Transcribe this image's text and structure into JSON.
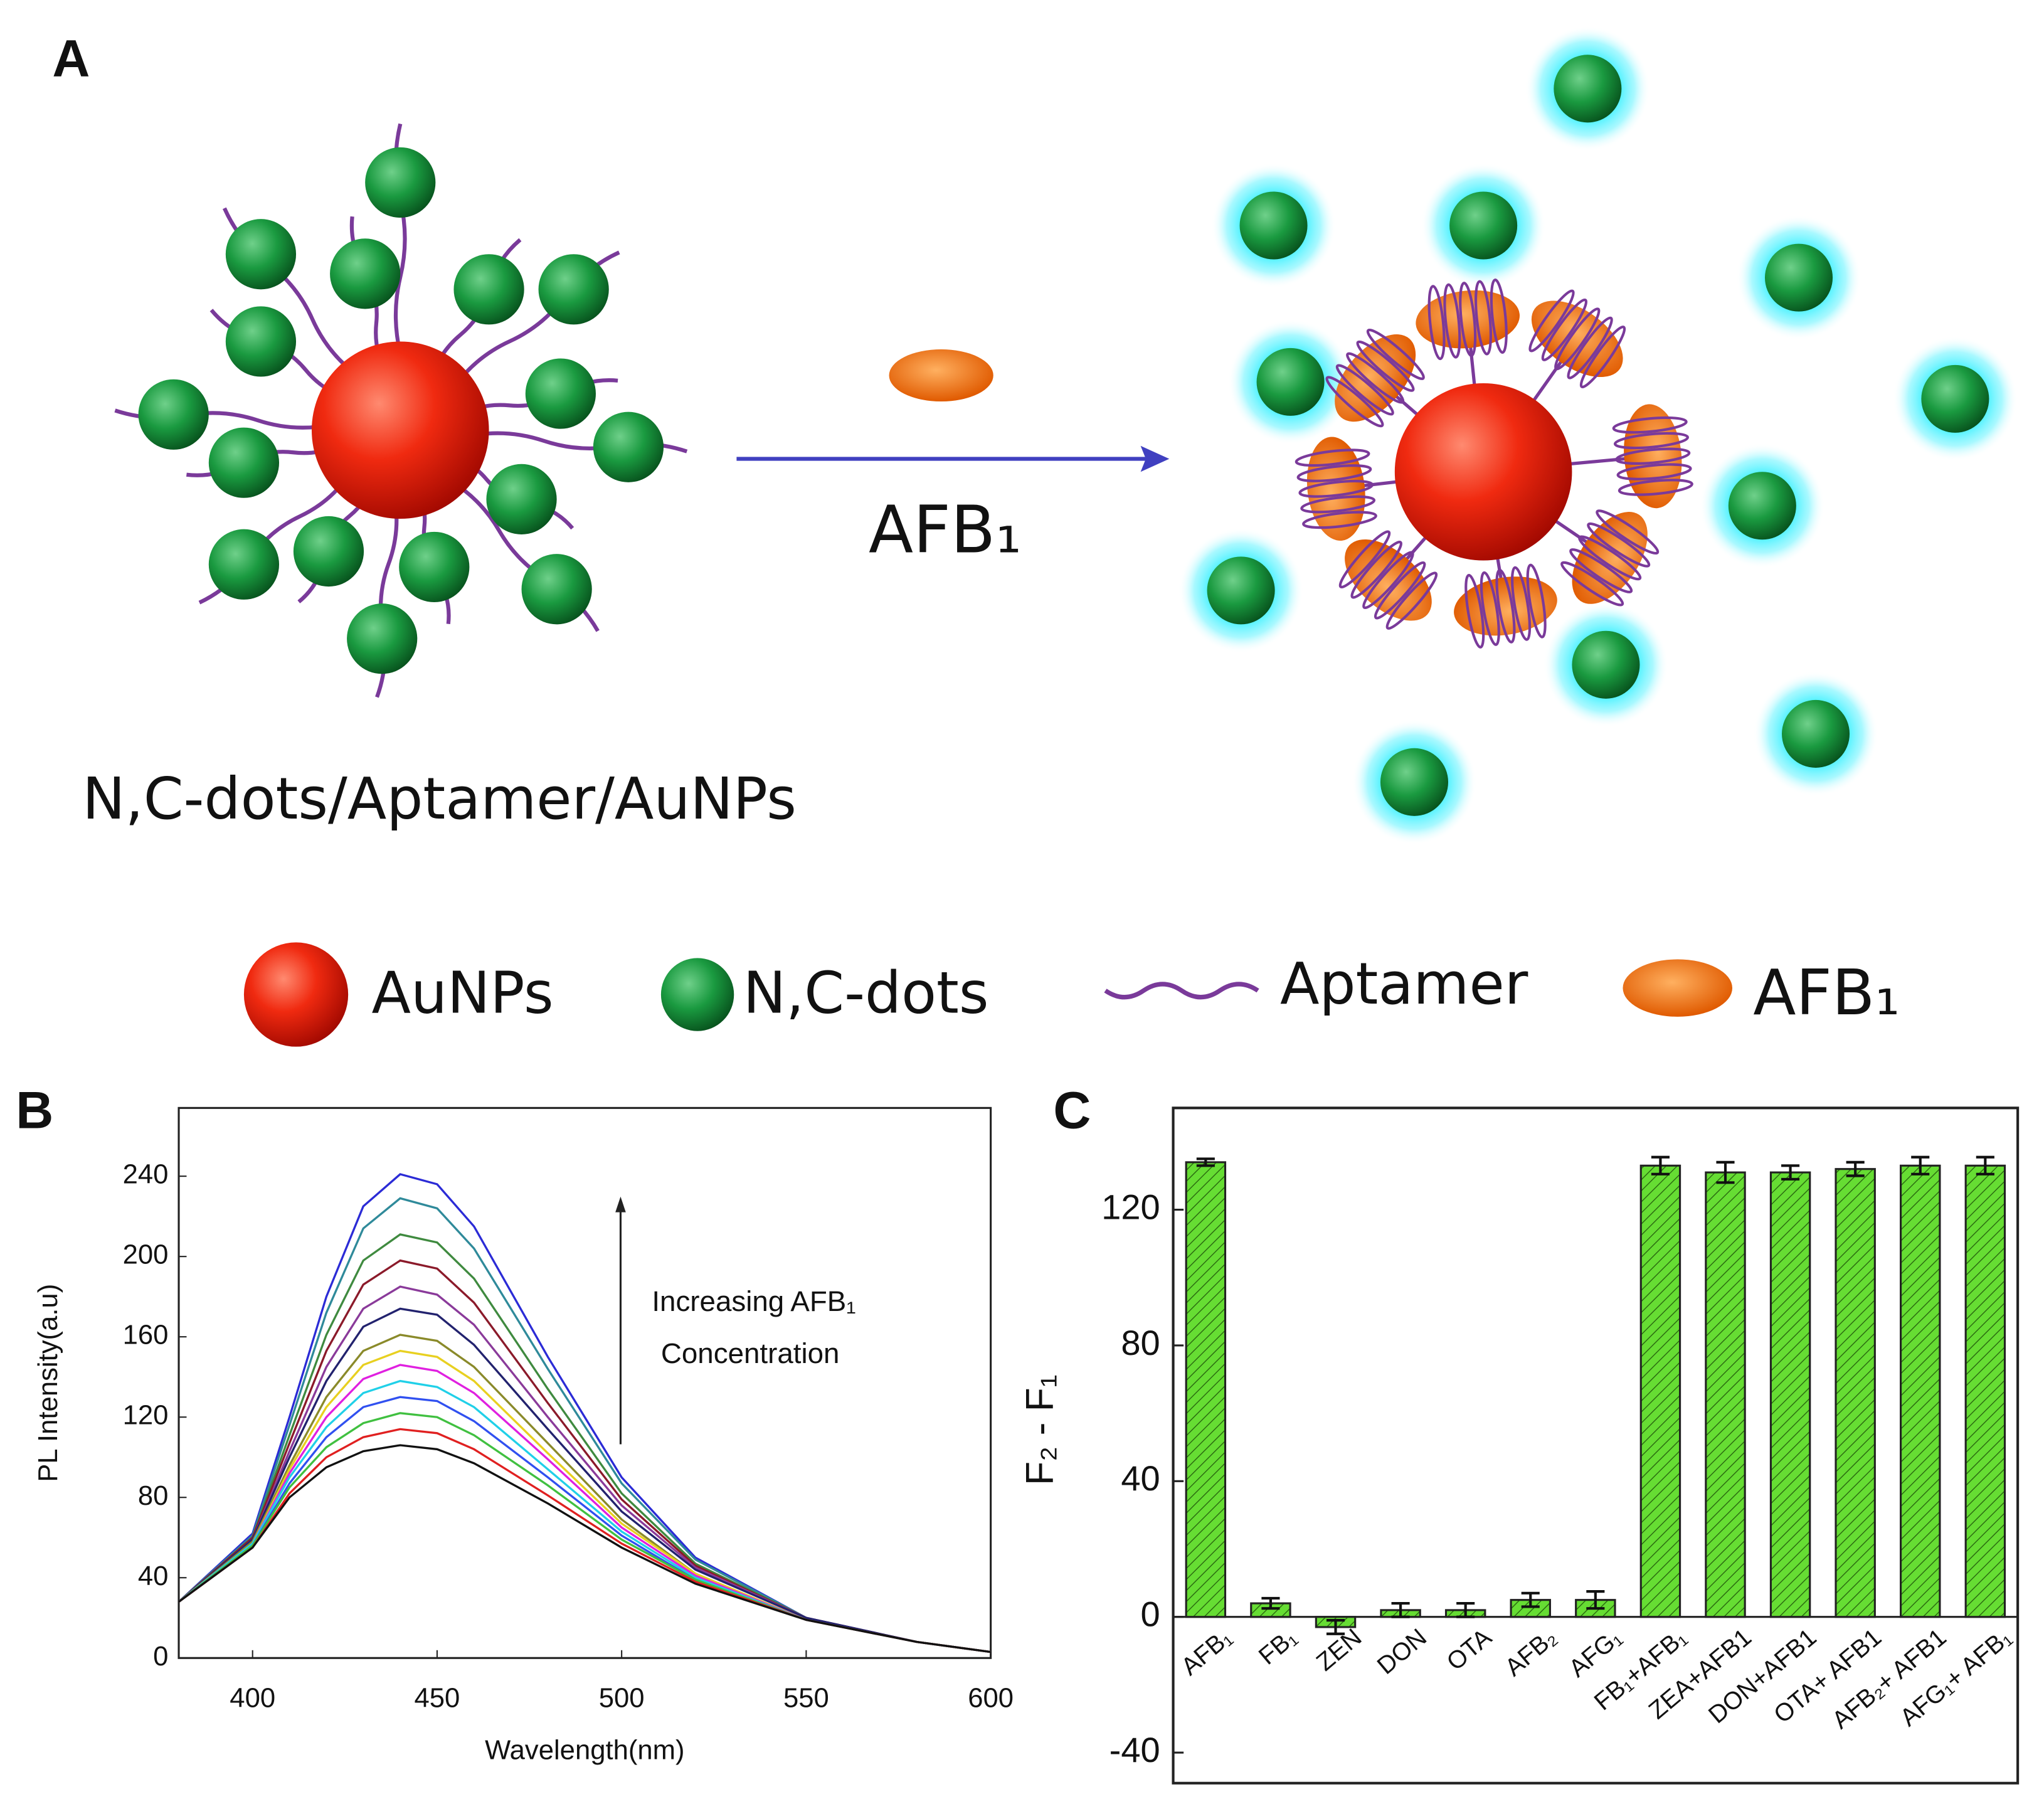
{
  "figure": {
    "panel_labels": [
      "A",
      "B",
      "C"
    ],
    "diagram": {
      "arrow_label": "AFB₁",
      "complex_label": "N,C-dots/Aptamer/AuNPs",
      "legend": [
        "AuNPs",
        "N,C-dots",
        "Aptamer",
        "AFB₁"
      ]
    }
  },
  "chart_data": [
    {
      "type": "line",
      "xlabel": "Wavelength(nm)",
      "ylabel": "PL Intensity(a.u)",
      "annotation": [
        "Increasing AFB₁",
        "Concentration"
      ],
      "x": [
        380,
        400,
        410,
        420,
        430,
        440,
        450,
        460,
        480,
        500,
        520,
        550,
        580,
        600
      ],
      "xlim": [
        380,
        600
      ],
      "xticks": [
        400,
        450,
        500,
        550,
        600
      ],
      "ylim": [
        0,
        274
      ],
      "yticks": [
        0,
        40,
        80,
        120,
        160,
        200,
        240
      ],
      "series": [
        {
          "color": "#2b2bd6",
          "values": [
            28,
            62,
            120,
            180,
            225,
            241,
            236,
            215,
            150,
            90,
            50,
            20,
            8,
            3
          ]
        },
        {
          "color": "#2f8a9a",
          "values": [
            28,
            61,
            116,
            172,
            214,
            229,
            224,
            204,
            144,
            87,
            49,
            20,
            8,
            3
          ]
        },
        {
          "color": "#3f8a3f",
          "values": [
            28,
            60,
            111,
            161,
            198,
            211,
            207,
            189,
            134,
            82,
            47,
            20,
            8,
            3
          ]
        },
        {
          "color": "#8b1a2a",
          "values": [
            28,
            60,
            107,
            153,
            186,
            198,
            194,
            177,
            127,
            79,
            46,
            20,
            8,
            3
          ]
        },
        {
          "color": "#8a3a9a",
          "values": [
            28,
            59,
            103,
            145,
            174,
            185,
            181,
            166,
            120,
            76,
            45,
            20,
            8,
            3
          ]
        },
        {
          "color": "#22226e",
          "values": [
            28,
            59,
            100,
            138,
            165,
            174,
            171,
            156,
            114,
            73,
            44,
            20,
            8,
            3
          ]
        },
        {
          "color": "#8a8a2a",
          "values": [
            28,
            58,
            96,
            130,
            153,
            161,
            158,
            145,
            107,
            69,
            42,
            19,
            8,
            3
          ]
        },
        {
          "color": "#e8d020",
          "values": [
            28,
            57,
            94,
            125,
            146,
            153,
            150,
            138,
            102,
            67,
            42,
            19,
            8,
            3
          ]
        },
        {
          "color": "#e020e0",
          "values": [
            28,
            57,
            92,
            120,
            139,
            146,
            143,
            132,
            99,
            65,
            41,
            19,
            8,
            3
          ]
        },
        {
          "color": "#20d0e8",
          "values": [
            28,
            57,
            90,
            115,
            132,
            138,
            135,
            125,
            94,
            63,
            40,
            19,
            8,
            3
          ]
        },
        {
          "color": "#3050f0",
          "values": [
            28,
            56,
            87,
            110,
            125,
            130,
            128,
            118,
            90,
            61,
            39,
            19,
            8,
            3
          ]
        },
        {
          "color": "#40c040",
          "values": [
            28,
            56,
            85,
            105,
            117,
            122,
            120,
            111,
            86,
            59,
            39,
            19,
            8,
            3
          ]
        },
        {
          "color": "#e02020",
          "values": [
            28,
            55,
            82,
            100,
            110,
            114,
            112,
            104,
            81,
            57,
            38,
            19,
            8,
            3
          ]
        },
        {
          "color": "#111111",
          "values": [
            28,
            55,
            80,
            95,
            103,
            106,
            104,
            97,
            77,
            55,
            37,
            19,
            8,
            3
          ]
        }
      ]
    },
    {
      "type": "bar",
      "ylabel": "F₂ - F₁",
      "color": "#66dd33",
      "categories": [
        "AFB₁",
        "FB₁",
        "ZEN",
        "DON",
        "OTA",
        "AFB₂",
        "AFG₁",
        "FB₁+AFB₁",
        "ZEA+AFB1",
        "DON+AFB1",
        "OTA+ AFB1",
        "AFB₂+ AFB1",
        "AFG₁+ AFB₁"
      ],
      "values": [
        134,
        4,
        -3,
        2,
        2,
        5,
        5,
        133,
        131,
        131,
        132,
        133,
        133
      ],
      "errors": [
        1,
        1.5,
        2,
        2,
        2,
        2,
        2.5,
        2.5,
        3,
        2,
        2,
        2.5,
        2.5
      ],
      "ylim": [
        -49,
        150
      ],
      "yticks": [
        -40,
        0,
        40,
        80,
        120
      ]
    }
  ]
}
